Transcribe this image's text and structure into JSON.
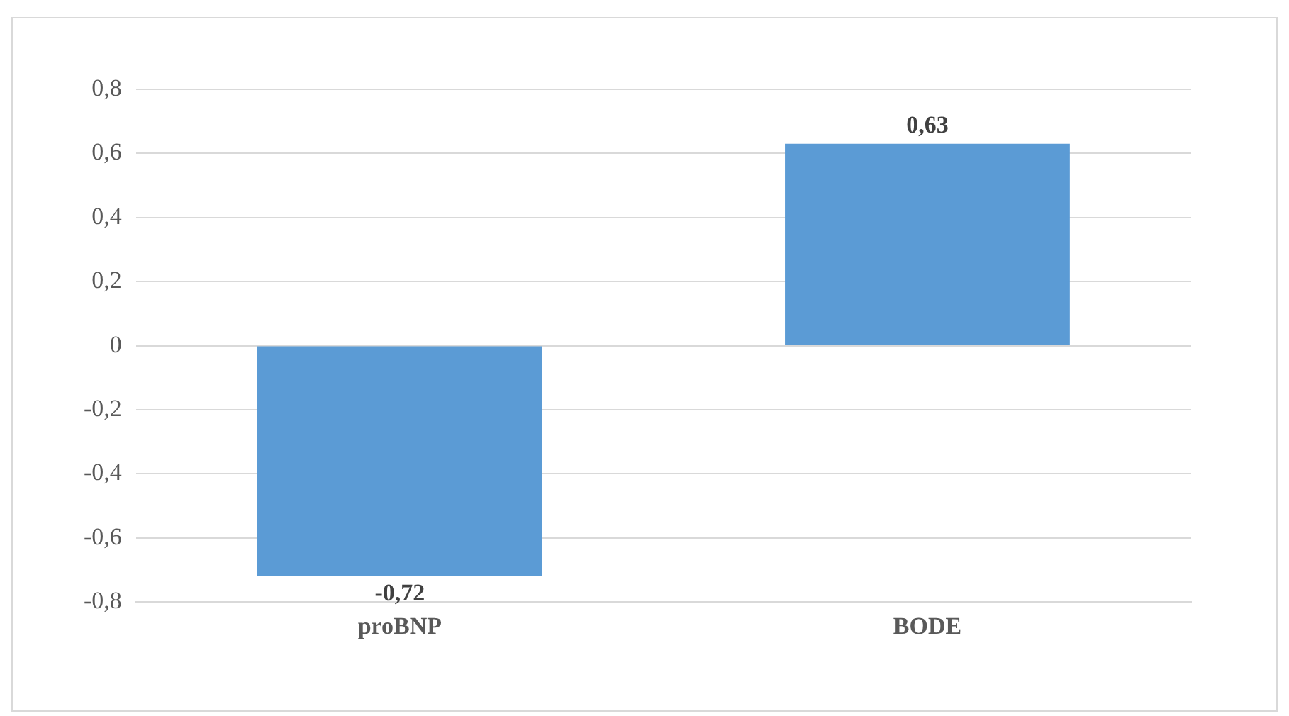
{
  "chart_data": {
    "type": "bar",
    "categories": [
      "proBNP",
      "BODE"
    ],
    "values": [
      -0.72,
      0.63
    ],
    "value_labels": [
      "-0,72",
      "0,63"
    ],
    "color": "#5b9bd5",
    "ylim": [
      -0.8,
      0.8
    ],
    "yticks": [
      {
        "value": -0.8,
        "label": "-0,8"
      },
      {
        "value": -0.6,
        "label": "-0,6"
      },
      {
        "value": -0.4,
        "label": "-0,4"
      },
      {
        "value": -0.2,
        "label": "-0,2"
      },
      {
        "value": 0,
        "label": "0"
      },
      {
        "value": 0.2,
        "label": "0,2"
      },
      {
        "value": 0.4,
        "label": "0,4"
      },
      {
        "value": 0.6,
        "label": "0,6"
      },
      {
        "value": 0.8,
        "label": "0,8"
      }
    ],
    "grid": "y",
    "legend": false
  }
}
